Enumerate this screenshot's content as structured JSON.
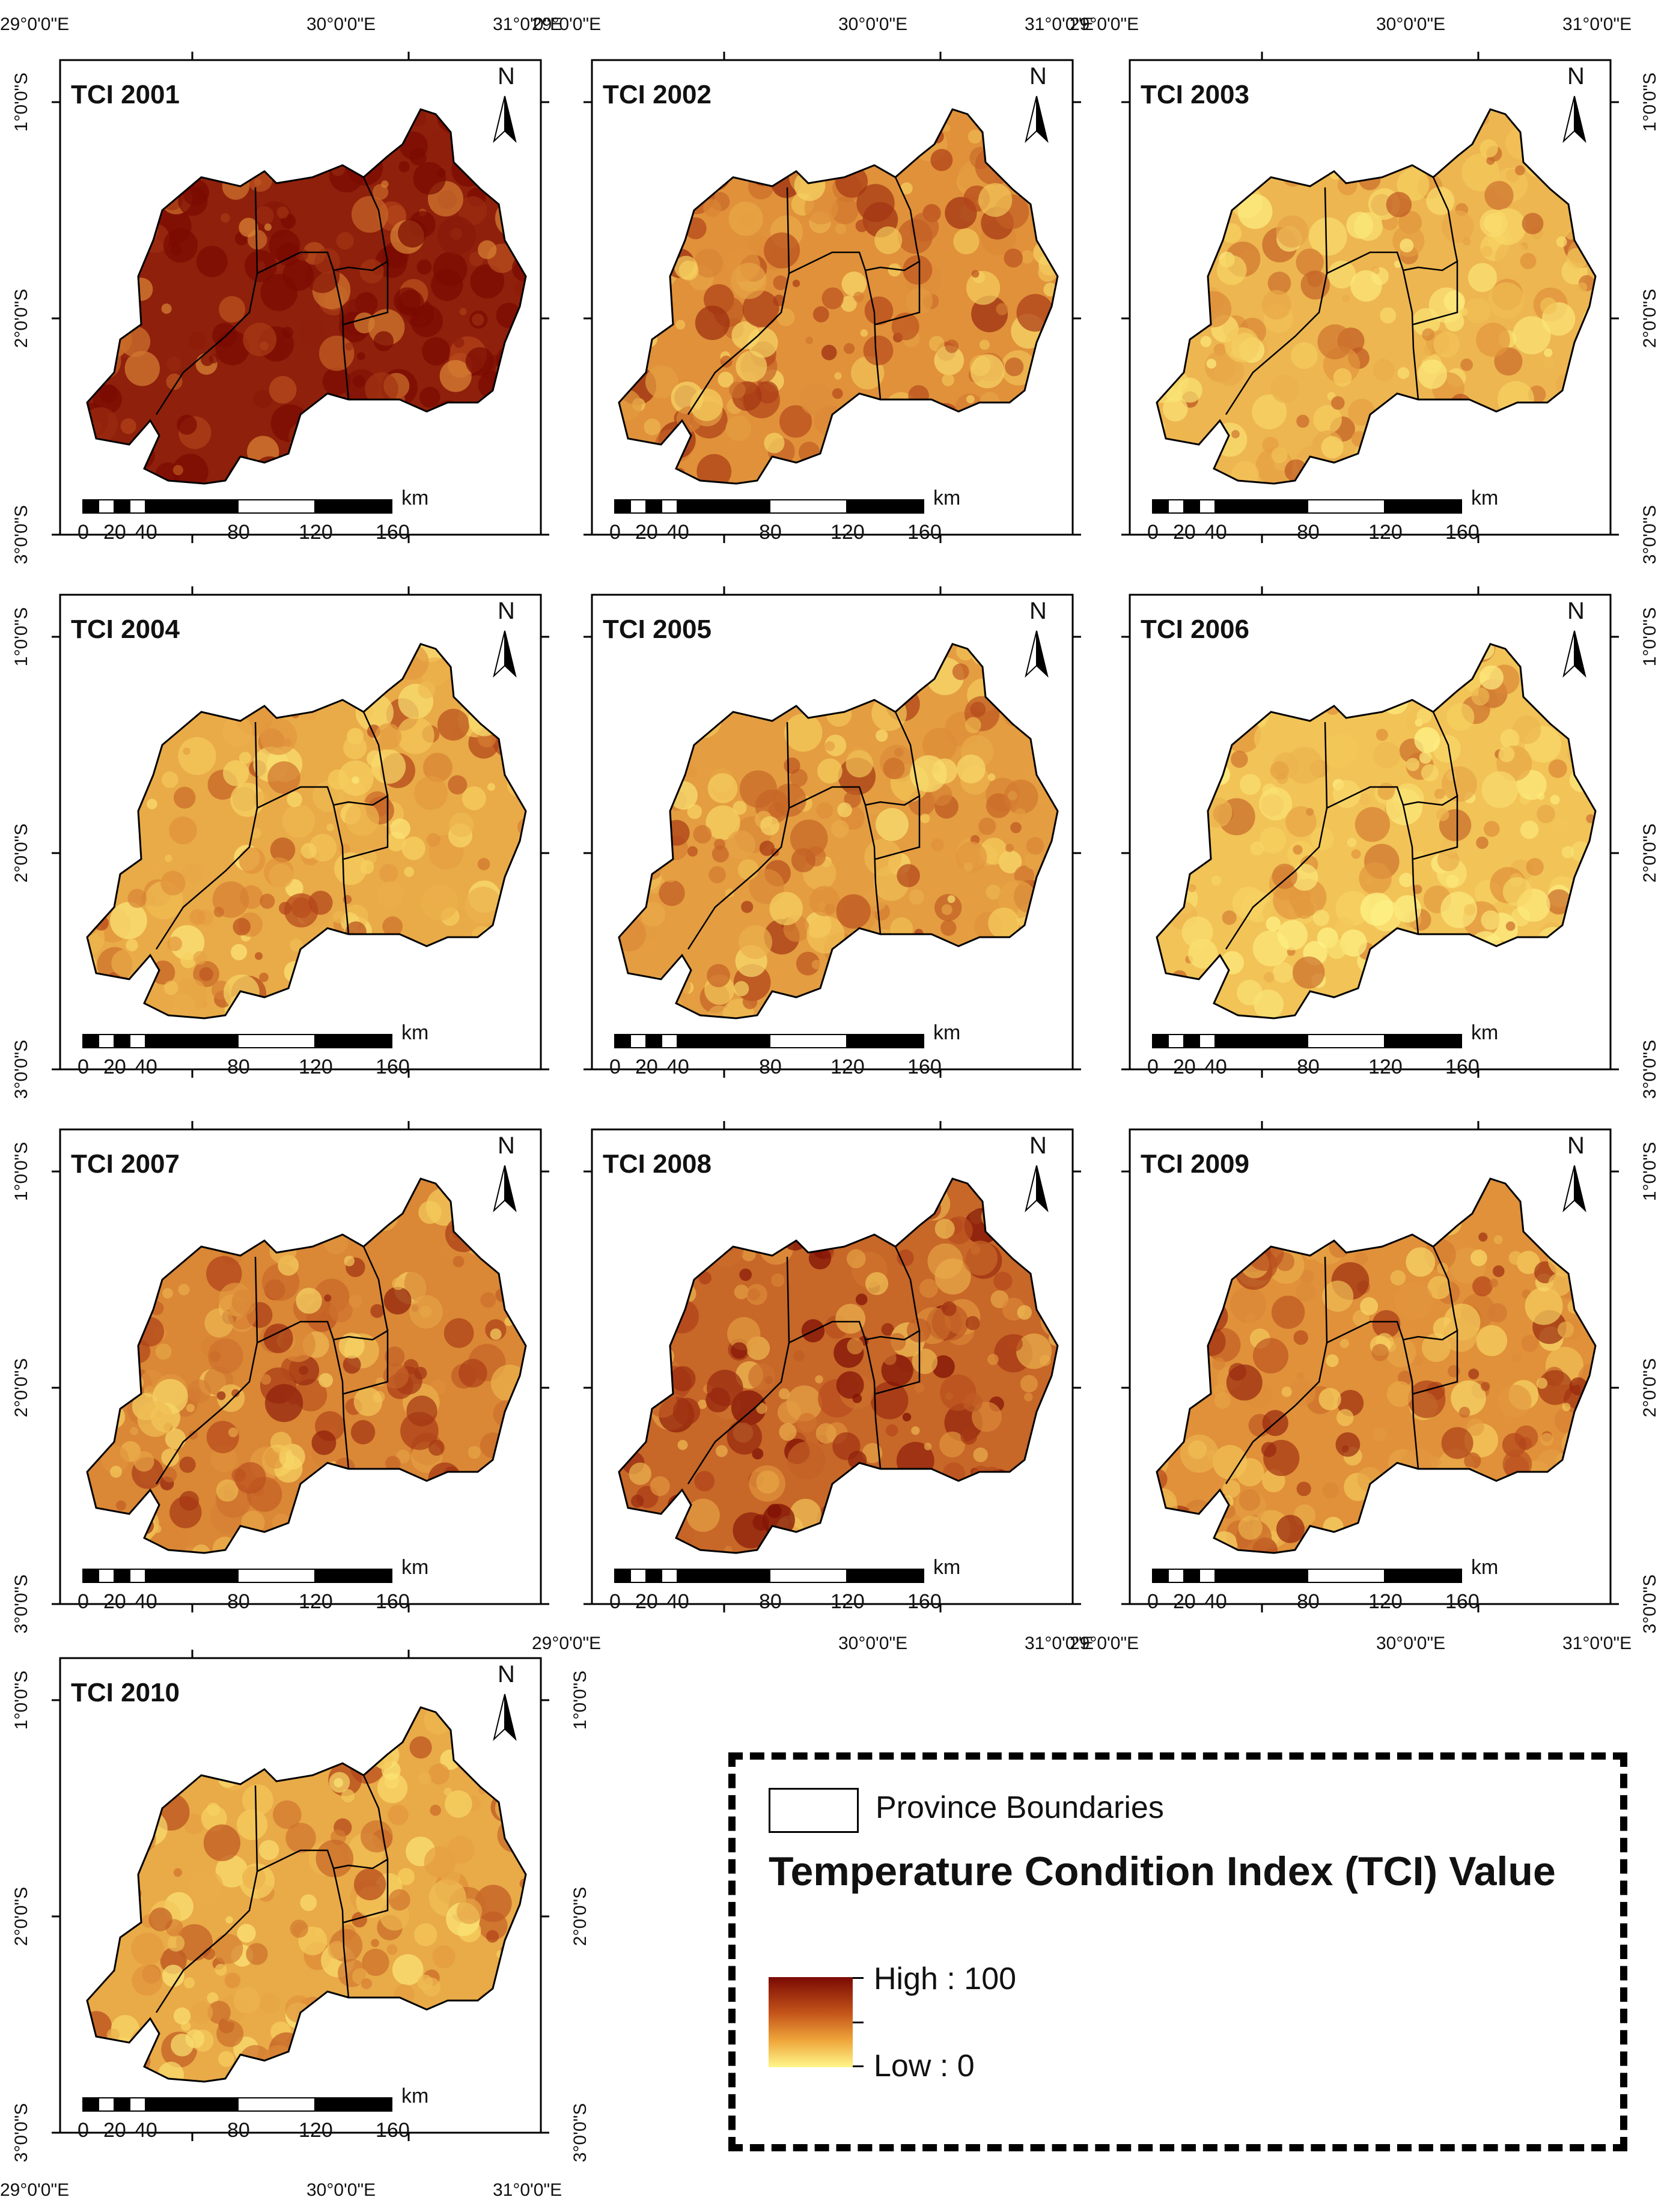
{
  "panels": [
    {
      "title": "TCI 2001",
      "year": 2001,
      "intensity": 0.92
    },
    {
      "title": "TCI 2002",
      "year": 2002,
      "intensity": 0.55
    },
    {
      "title": "TCI 2003",
      "year": 2003,
      "intensity": 0.4
    },
    {
      "title": "TCI 2004",
      "year": 2004,
      "intensity": 0.45
    },
    {
      "title": "TCI 2005",
      "year": 2005,
      "intensity": 0.5
    },
    {
      "title": "TCI 2006",
      "year": 2006,
      "intensity": 0.35
    },
    {
      "title": "TCI 2007",
      "year": 2007,
      "intensity": 0.58
    },
    {
      "title": "TCI 2008",
      "year": 2008,
      "intensity": 0.68
    },
    {
      "title": "TCI 2009",
      "year": 2009,
      "intensity": 0.55
    },
    {
      "title": "TCI 2010",
      "year": 2010,
      "intensity": 0.45
    }
  ],
  "north_label": "N",
  "scalebar": {
    "ticks": [
      "0",
      "20",
      "40",
      "80",
      "120",
      "160"
    ],
    "unit": "km"
  },
  "lon_labels": [
    "29°0'0\"E",
    "30°0'0\"E",
    "31°0'0\"E"
  ],
  "lat_labels": [
    "1°0'0\"S",
    "2°0'0\"S",
    "3°0'0\"S"
  ],
  "legend": {
    "province_label": "Province Boundaries",
    "title": "Temperature Condition Index (TCI) Value",
    "high_label": "High : 100",
    "low_label": "Low : 0"
  },
  "colors": {
    "high": "#7a0a02",
    "mid": "#d2741d",
    "low": "#fff68a",
    "outline": "#000000"
  }
}
